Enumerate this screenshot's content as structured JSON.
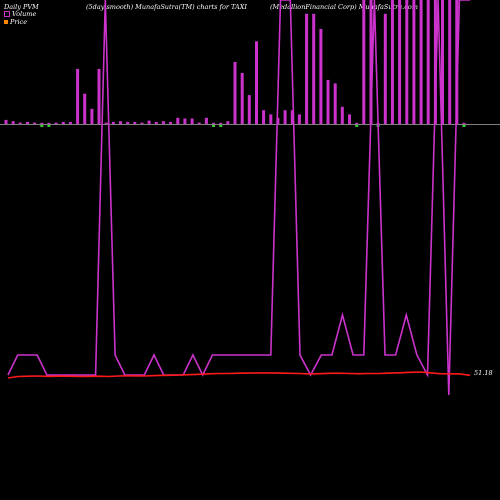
{
  "header": {
    "left": "Daily PVM",
    "middle": "(5day smooth) MunafaSutra(TM) charts for TAXI",
    "right": "(MedallionFinancial Corp) MunafaSutra.com"
  },
  "legend": {
    "volume_label": "Volume",
    "price_label": "Price",
    "volume_color": "#cc33cc",
    "price_color": "#ff8800"
  },
  "price_readout": "51.18",
  "colors": {
    "background": "#000000",
    "pvm_line": "#cc33cc",
    "price_line": "#ff1a1a",
    "baseline": "#ffffff",
    "up_tick": "#33cc33"
  },
  "chart_data": {
    "type": "bar",
    "title": "(5day smooth) MunafaSutra(TM) charts for TAXI",
    "series": [
      {
        "name": "Volume",
        "values": [
          6,
          4,
          2,
          3,
          2,
          1,
          1,
          2,
          3,
          3,
          80,
          44,
          22,
          80,
          2,
          3,
          4,
          3,
          3,
          2,
          5,
          3,
          4,
          3,
          9,
          8,
          8,
          2,
          9,
          1,
          0,
          4,
          90,
          74,
          42,
          120,
          20,
          14,
          9,
          20,
          20,
          14,
          160,
          160,
          138,
          64,
          59,
          25,
          14,
          0,
          180,
          180,
          0,
          160,
          180,
          180,
          180,
          180,
          180,
          180,
          180,
          180,
          180,
          180,
          0
        ]
      },
      {
        "name": "PVM",
        "values": [
          0,
          20,
          20,
          20,
          0,
          0,
          0,
          0,
          0,
          0,
          200,
          20,
          0,
          0,
          0,
          20,
          0,
          0,
          0,
          20,
          0,
          20,
          20,
          20,
          20,
          20,
          20,
          20,
          200,
          200,
          20,
          0,
          20,
          20,
          60,
          20,
          20,
          200,
          20,
          20,
          60,
          20,
          0,
          200,
          -20,
          200,
          200
        ]
      },
      {
        "name": "Price",
        "values": [
          51.0,
          51.1,
          51.12,
          51.13,
          51.11,
          51.12,
          51.12,
          51.1,
          51.11,
          51.12,
          51.1,
          51.13,
          51.15,
          51.14,
          51.15,
          51.17,
          51.18,
          51.2,
          51.22,
          51.25,
          51.28,
          51.3,
          51.3,
          51.32,
          51.33,
          51.34,
          51.34,
          51.33,
          51.31,
          51.3,
          51.27,
          51.29,
          51.31,
          51.32,
          51.3,
          51.29,
          51.3,
          51.3,
          51.33,
          51.35,
          51.38,
          51.4,
          51.35,
          51.29,
          51.28,
          51.27,
          51.18
        ]
      }
    ]
  }
}
